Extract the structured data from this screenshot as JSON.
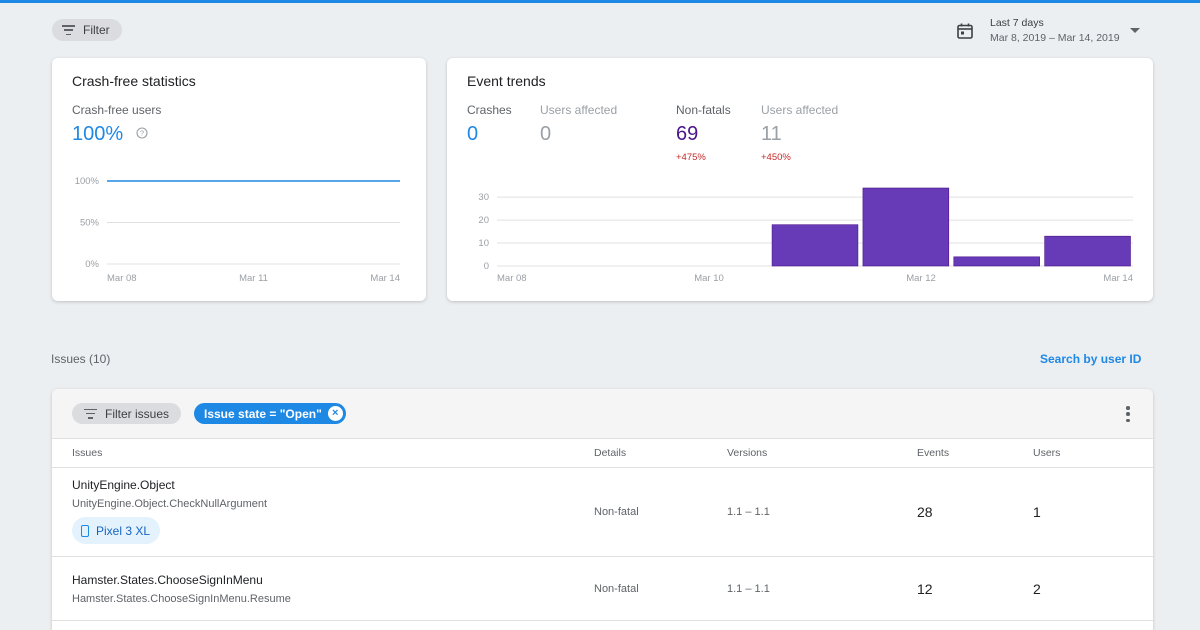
{
  "header": {
    "filter_label": "Filter",
    "date_range_label": "Last 7 days",
    "date_range_value": "Mar 8, 2019 – Mar 14, 2019"
  },
  "crash_free": {
    "title": "Crash-free statistics",
    "stat_label": "Crash-free users",
    "stat_value": "100%",
    "help_icon": "help-circle-icon"
  },
  "event_trends": {
    "title": "Event trends",
    "stats": [
      {
        "label": "Crashes",
        "value": "0",
        "delta": ""
      },
      {
        "label": "Users affected",
        "value": "0",
        "delta": ""
      },
      {
        "label": "Non-fatals",
        "value": "69",
        "delta": "+475%"
      },
      {
        "label": "Users affected",
        "value": "11",
        "delta": "+450%"
      }
    ]
  },
  "chart_data": [
    {
      "type": "line",
      "title": "",
      "x": [
        "Mar 08",
        "Mar 14"
      ],
      "x_tick_labels": [
        "Mar 08",
        "Mar 11",
        "Mar 14"
      ],
      "series": [
        {
          "values": [
            100,
            100
          ]
        }
      ],
      "y_tick_labels": [
        "100%",
        "50%",
        "0%"
      ],
      "ylim": [
        0,
        100
      ],
      "grid": true,
      "color": "#1e88e5"
    },
    {
      "type": "bar",
      "title": "",
      "categories": [
        "Mar 08",
        "Mar 09",
        "Mar 10",
        "Mar 11",
        "Mar 12",
        "Mar 13",
        "Mar 14"
      ],
      "x_tick_labels": [
        "Mar 08",
        "Mar 10",
        "Mar 12",
        "Mar 14"
      ],
      "values": [
        0,
        0,
        0,
        18,
        34,
        4,
        13
      ],
      "y_tick_labels": [
        "30",
        "20",
        "10",
        "0"
      ],
      "ylim": [
        0,
        34
      ],
      "grid": true,
      "color": "#673ab7"
    }
  ],
  "issues": {
    "count_label": "Issues (10)",
    "search_link": "Search by user ID",
    "filter_chip": "Filter issues",
    "state_chip": "Issue state = \"Open\"",
    "columns": [
      "Issues",
      "Details",
      "Versions",
      "Events",
      "Users"
    ],
    "rows": [
      {
        "title": "UnityEngine.Object",
        "subtitle": "UnityEngine.Object.CheckNullArgument",
        "details": "Non-fatal",
        "versions": "1.1 – 1.1",
        "events": "28",
        "users": "1",
        "device": "Pixel 3 XL"
      },
      {
        "title": "Hamster.States.ChooseSignInMenu",
        "subtitle": "Hamster.States.ChooseSignInMenu.Resume",
        "details": "Non-fatal",
        "versions": "1.1 – 1.1",
        "events": "12",
        "users": "2",
        "device": ""
      }
    ]
  },
  "colors": {
    "accent": "#1e88e5",
    "nonfatal": "#4a148c",
    "bar": "#673ab7",
    "delta": "#c62828"
  }
}
